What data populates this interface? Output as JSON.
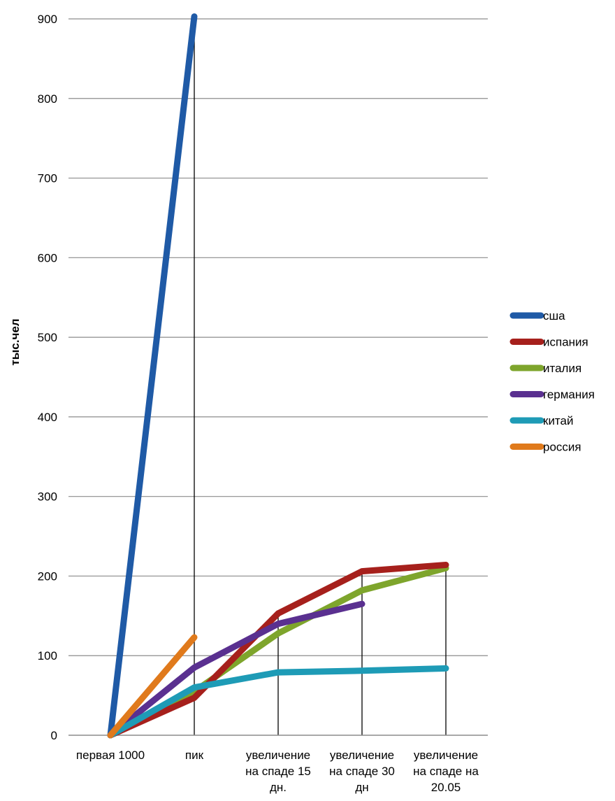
{
  "chart_data": {
    "type": "line",
    "title": "",
    "xlabel": "",
    "ylabel": "тыс.чел",
    "ylim": [
      0,
      900
    ],
    "yticks": [
      0,
      100,
      200,
      300,
      400,
      500,
      600,
      700,
      800,
      900
    ],
    "grid": true,
    "legend_position": "right",
    "categories": [
      [
        "первая 1000"
      ],
      [
        "пик"
      ],
      [
        "увеличение",
        "на спаде 15",
        "дн."
      ],
      [
        "увеличение",
        "на спаде 30",
        "дн"
      ],
      [
        "увеличение",
        "на спаде на",
        "20.05"
      ]
    ],
    "series": [
      {
        "name": "сша",
        "color": "#1f5aa6",
        "values": [
          0,
          903,
          null,
          null,
          null
        ]
      },
      {
        "name": "испания",
        "color": "#a6201c",
        "values": [
          0,
          47,
          153,
          206,
          214
        ]
      },
      {
        "name": "италия",
        "color": "#7ea52c",
        "values": [
          0,
          55,
          128,
          182,
          210
        ]
      },
      {
        "name": "германия",
        "color": "#5a3090",
        "values": [
          0,
          85,
          140,
          165,
          null
        ]
      },
      {
        "name": "китай",
        "color": "#1e9bb6",
        "values": [
          0,
          60,
          79,
          81,
          84
        ]
      },
      {
        "name": "россия",
        "color": "#e07a1c",
        "values": [
          0,
          123,
          null,
          null,
          null
        ]
      }
    ]
  }
}
